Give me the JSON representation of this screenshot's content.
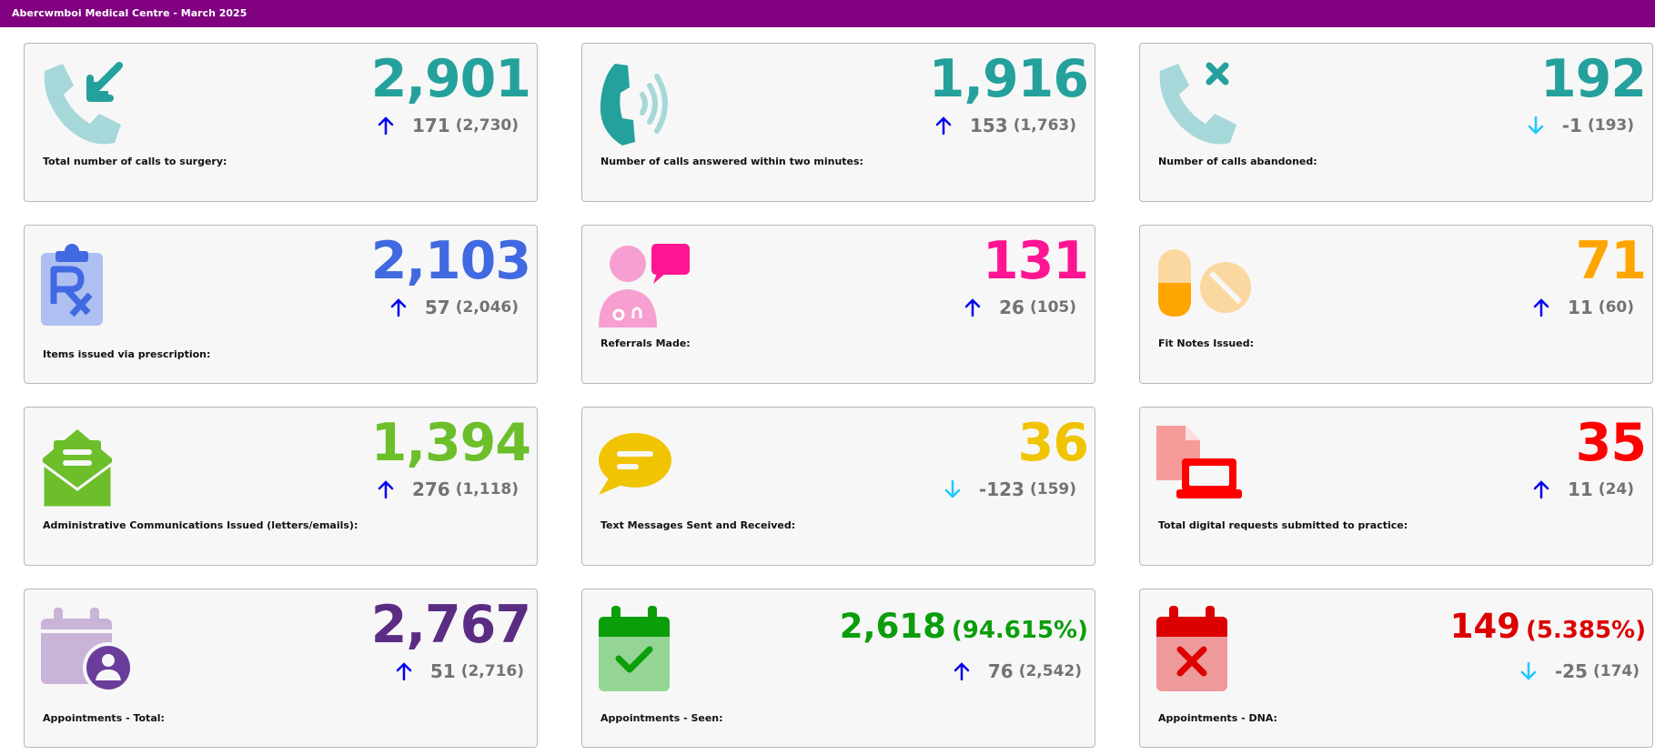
{
  "header": {
    "title": "Abercwmboi Medical Centre - March 2025"
  },
  "cards": [
    {
      "label": "Total number of calls to surgery:",
      "value": "2,901",
      "change": "171",
      "previous": "(2,730)",
      "trend": "up",
      "color": "#24a19c",
      "icon": "phone-incoming-icon"
    },
    {
      "label": "Number of calls answered within two minutes:",
      "value": "1,916",
      "change": "153",
      "previous": "(1,763)",
      "trend": "up",
      "color": "#24a19c",
      "icon": "phone-ringing-icon"
    },
    {
      "label": "Number of calls abandoned:",
      "value": "192",
      "change": "-1",
      "previous": "(193)",
      "trend": "down",
      "color": "#24a19c",
      "icon": "phone-missed-icon"
    },
    {
      "label": "Items issued via prescription:",
      "value": "2,103",
      "change": "57",
      "previous": "(2,046)",
      "trend": "up",
      "color": "#4169e1",
      "icon": "prescription-clipboard-icon"
    },
    {
      "label": "Referrals Made:",
      "value": "131",
      "change": "26",
      "previous": "(105)",
      "trend": "up",
      "color": "#ff1493",
      "icon": "doctor-message-icon"
    },
    {
      "label": "Fit Notes Issued:",
      "value": "71",
      "change": "11",
      "previous": "(60)",
      "trend": "up",
      "color": "#ffa500",
      "icon": "pills-icon"
    },
    {
      "label": "Administrative Communications Issued (letters/emails):",
      "value": "1,394",
      "change": "276",
      "previous": "(1,118)",
      "trend": "up",
      "color": "#6cbf2a",
      "icon": "open-envelope-icon"
    },
    {
      "label": "Text Messages Sent and Received:",
      "value": "36",
      "change": "-123",
      "previous": "(159)",
      "trend": "down",
      "color": "#f0c400",
      "icon": "speech-bubble-icon"
    },
    {
      "label": "Total digital requests submitted to practice:",
      "value": "35",
      "change": "11",
      "previous": "(24)",
      "trend": "up",
      "color": "#ff0000",
      "icon": "file-laptop-icon"
    },
    {
      "label": "Appointments - Total:",
      "value": "2,767",
      "change": "51",
      "previous": "(2,716)",
      "trend": "up",
      "color": "#5b2c83",
      "icon": "calendar-user-icon"
    },
    {
      "label": "Appointments - Seen:",
      "value": "2,618",
      "percent": "(94.615%)",
      "change": "76",
      "previous": "(2,542)",
      "trend": "up",
      "color": "#0b9e0b",
      "icon": "calendar-check-icon"
    },
    {
      "label": "Appointments - DNA:",
      "value": "149",
      "percent": "(5.385%)",
      "change": "-25",
      "previous": "(174)",
      "trend": "down",
      "color": "#dd0000",
      "icon": "calendar-x-icon"
    }
  ],
  "colors": {
    "header_bg": "#800080",
    "arrow_up": "#0000ee",
    "arrow_down": "#1ec8ff",
    "change_text": "#737373"
  }
}
